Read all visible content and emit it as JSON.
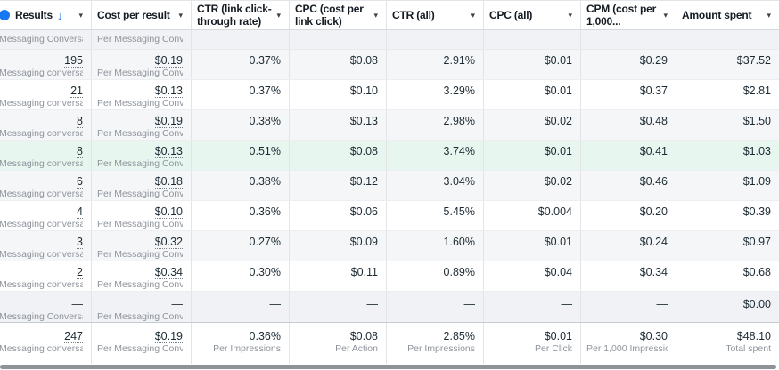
{
  "colors": {
    "accent_blue": "#1877f2",
    "highlight_row": "#e7f6ef",
    "scrollbar": "#8f9398"
  },
  "icons": {
    "caret_down": "▾",
    "sort_desc": "↓"
  },
  "columns": [
    {
      "label": "Results"
    },
    {
      "label": "Cost per result"
    },
    {
      "label": "CTR (link click-through rate)"
    },
    {
      "label": "CPC (cost per link click)"
    },
    {
      "label": "CTR (all)"
    },
    {
      "label": "CPC (all)"
    },
    {
      "label": "CPM (cost per 1,000..."
    },
    {
      "label": "Amount spent"
    }
  ],
  "partial_row": {
    "results_sub": "Messaging Conversati...",
    "cost_sub": "Per Messaging Conver..."
  },
  "rows": [
    {
      "results": "195",
      "results_sub": "Messaging conversati...",
      "cost": "$0.19",
      "cost_sub": "Per Messaging Conve...",
      "ctr_link": "0.37%",
      "cpc_link": "$0.08",
      "ctr_all": "2.91%",
      "cpc_all": "$0.01",
      "cpm": "$0.29",
      "spent": "$37.52",
      "highlight": false
    },
    {
      "results": "21",
      "results_sub": "Messaging conversati...",
      "cost": "$0.13",
      "cost_sub": "Per Messaging Conve...",
      "ctr_link": "0.37%",
      "cpc_link": "$0.10",
      "ctr_all": "3.29%",
      "cpc_all": "$0.01",
      "cpm": "$0.37",
      "spent": "$2.81",
      "highlight": false
    },
    {
      "results": "8",
      "results_sub": "Messaging conversati...",
      "cost": "$0.19",
      "cost_sub": "Per Messaging Conve...",
      "ctr_link": "0.38%",
      "cpc_link": "$0.13",
      "ctr_all": "2.98%",
      "cpc_all": "$0.02",
      "cpm": "$0.48",
      "spent": "$1.50",
      "highlight": false
    },
    {
      "results": "8",
      "results_sub": "Messaging conversati...",
      "cost": "$0.13",
      "cost_sub": "Per Messaging Conve...",
      "ctr_link": "0.51%",
      "cpc_link": "$0.08",
      "ctr_all": "3.74%",
      "cpc_all": "$0.01",
      "cpm": "$0.41",
      "spent": "$1.03",
      "highlight": true
    },
    {
      "results": "6",
      "results_sub": "Messaging conversati...",
      "cost": "$0.18",
      "cost_sub": "Per Messaging Conve...",
      "ctr_link": "0.38%",
      "cpc_link": "$0.12",
      "ctr_all": "3.04%",
      "cpc_all": "$0.02",
      "cpm": "$0.46",
      "spent": "$1.09",
      "highlight": false
    },
    {
      "results": "4",
      "results_sub": "Messaging conversati...",
      "cost": "$0.10",
      "cost_sub": "Per Messaging Conve...",
      "ctr_link": "0.36%",
      "cpc_link": "$0.06",
      "ctr_all": "5.45%",
      "cpc_all": "$0.004",
      "cpm": "$0.20",
      "spent": "$0.39",
      "highlight": false
    },
    {
      "results": "3",
      "results_sub": "Messaging conversati...",
      "cost": "$0.32",
      "cost_sub": "Per Messaging Conve...",
      "ctr_link": "0.27%",
      "cpc_link": "$0.09",
      "ctr_all": "1.60%",
      "cpc_all": "$0.01",
      "cpm": "$0.24",
      "spent": "$0.97",
      "highlight": false
    },
    {
      "results": "2",
      "results_sub": "Messaging conversati...",
      "cost": "$0.34",
      "cost_sub": "Per Messaging Conve...",
      "ctr_link": "0.30%",
      "cpc_link": "$0.11",
      "ctr_all": "0.89%",
      "cpc_all": "$0.04",
      "cpm": "$0.34",
      "spent": "$0.68",
      "highlight": false
    }
  ],
  "dash_row": {
    "results": "—",
    "results_sub": "Messaging Conversati...",
    "cost": "—",
    "cost_sub": "Per Messaging Conver...",
    "ctr_link": "—",
    "cpc_link": "—",
    "ctr_all": "—",
    "cpc_all": "—",
    "cpm": "—",
    "spent": "$0.00"
  },
  "totals": {
    "results": "247",
    "results_sub": "Messaging conversati...",
    "cost": "$0.19",
    "cost_sub": "Per Messaging Conve...",
    "ctr_link": "0.36%",
    "ctr_link_sub": "Per Impressions",
    "cpc_link": "$0.08",
    "cpc_link_sub": "Per Action",
    "ctr_all": "2.85%",
    "ctr_all_sub": "Per Impressions",
    "cpc_all": "$0.01",
    "cpc_all_sub": "Per Click",
    "cpm": "$0.30",
    "cpm_sub": "Per 1,000 Impressions",
    "spent": "$48.10",
    "spent_sub": "Total spent"
  }
}
